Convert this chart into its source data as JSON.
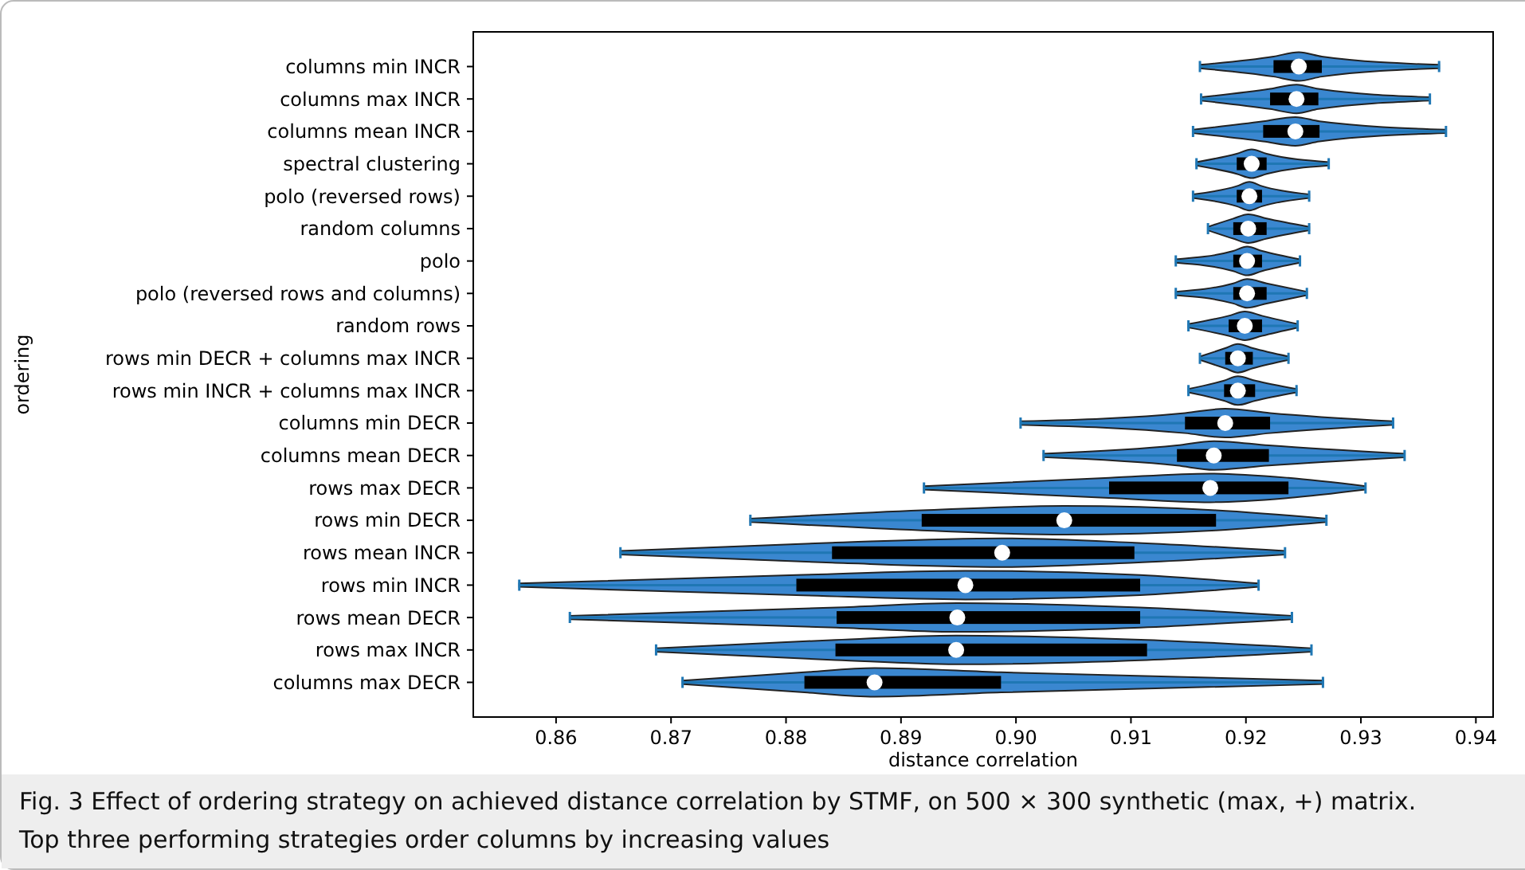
{
  "chart_data": {
    "type": "box",
    "orientation": "horizontal",
    "xlabel": "distance correlation",
    "ylabel": "ordering",
    "color": "#000000",
    "categories": [
      "columns min INCR",
      "columns max INCR",
      "columns mean INCR",
      "spectral clustering",
      "polo (reversed rows)",
      "random columns",
      "polo",
      "polo (reversed rows and columns)",
      "random rows",
      "rows min DECR + columns max INCR",
      "rows min INCR + columns max INCR",
      "columns min DECR",
      "columns mean DECR",
      "rows max DECR",
      "rows min DECR",
      "rows mean INCR",
      "rows min INCR",
      "rows mean DECR",
      "rows max INCR",
      "columns max DECR"
    ],
    "boxes": [
      {
        "low": 0.916,
        "q1": 0.9224,
        "median": 0.9246,
        "q3": 0.9266,
        "high": 0.9368
      },
      {
        "low": 0.9161,
        "q1": 0.9221,
        "median": 0.9244,
        "q3": 0.9263,
        "high": 0.936
      },
      {
        "low": 0.9154,
        "q1": 0.9215,
        "median": 0.9243,
        "q3": 0.9264,
        "high": 0.9374
      },
      {
        "low": 0.9157,
        "q1": 0.9192,
        "median": 0.9205,
        "q3": 0.9218,
        "high": 0.9272
      },
      {
        "low": 0.9154,
        "q1": 0.9192,
        "median": 0.9203,
        "q3": 0.9214,
        "high": 0.9255
      },
      {
        "low": 0.9167,
        "q1": 0.9189,
        "median": 0.9202,
        "q3": 0.9218,
        "high": 0.9255
      },
      {
        "low": 0.9139,
        "q1": 0.9189,
        "median": 0.9201,
        "q3": 0.9214,
        "high": 0.9247
      },
      {
        "low": 0.9139,
        "q1": 0.9189,
        "median": 0.9201,
        "q3": 0.9218,
        "high": 0.9253
      },
      {
        "low": 0.915,
        "q1": 0.9185,
        "median": 0.9199,
        "q3": 0.9214,
        "high": 0.9245
      },
      {
        "low": 0.916,
        "q1": 0.9182,
        "median": 0.9193,
        "q3": 0.9206,
        "high": 0.9237
      },
      {
        "low": 0.915,
        "q1": 0.9181,
        "median": 0.9193,
        "q3": 0.9208,
        "high": 0.9244
      },
      {
        "low": 0.9004,
        "q1": 0.9147,
        "median": 0.9182,
        "q3": 0.9221,
        "high": 0.9328
      },
      {
        "low": 0.9024,
        "q1": 0.914,
        "median": 0.9172,
        "q3": 0.922,
        "high": 0.9338
      },
      {
        "low": 0.892,
        "q1": 0.9081,
        "median": 0.9169,
        "q3": 0.9237,
        "high": 0.9304
      },
      {
        "low": 0.8769,
        "q1": 0.8918,
        "median": 0.9042,
        "q3": 0.9174,
        "high": 0.927
      },
      {
        "low": 0.8656,
        "q1": 0.884,
        "median": 0.8988,
        "q3": 0.9103,
        "high": 0.9234
      },
      {
        "low": 0.8568,
        "q1": 0.8809,
        "median": 0.8956,
        "q3": 0.9108,
        "high": 0.9211
      },
      {
        "low": 0.8612,
        "q1": 0.8844,
        "median": 0.8949,
        "q3": 0.9108,
        "high": 0.924
      },
      {
        "low": 0.8687,
        "q1": 0.8843,
        "median": 0.8948,
        "q3": 0.9114,
        "high": 0.9257
      },
      {
        "low": 0.871,
        "q1": 0.8816,
        "median": 0.8877,
        "q3": 0.8987,
        "high": 0.9267
      }
    ],
    "xlim": [
      0.8528,
      0.9415
    ],
    "xticks": [
      {
        "value": 0.86,
        "label": "0.86"
      },
      {
        "value": 0.87,
        "label": "0.87"
      },
      {
        "value": 0.88,
        "label": "0.88"
      },
      {
        "value": 0.89,
        "label": "0.89"
      },
      {
        "value": 0.9,
        "label": "0.90"
      },
      {
        "value": 0.91,
        "label": "0.91"
      },
      {
        "value": 0.92,
        "label": "0.92"
      },
      {
        "value": 0.93,
        "label": "0.93"
      },
      {
        "value": 0.94,
        "label": "0.94"
      }
    ],
    "grid": false,
    "annotations": [
      "Fig. 3 Effect of ordering strategy on achieved distance correlation by STMF, on 500 × 300 synthetic (max, +) matrix. Top three performing strategies order columns by increasing values"
    ]
  }
}
